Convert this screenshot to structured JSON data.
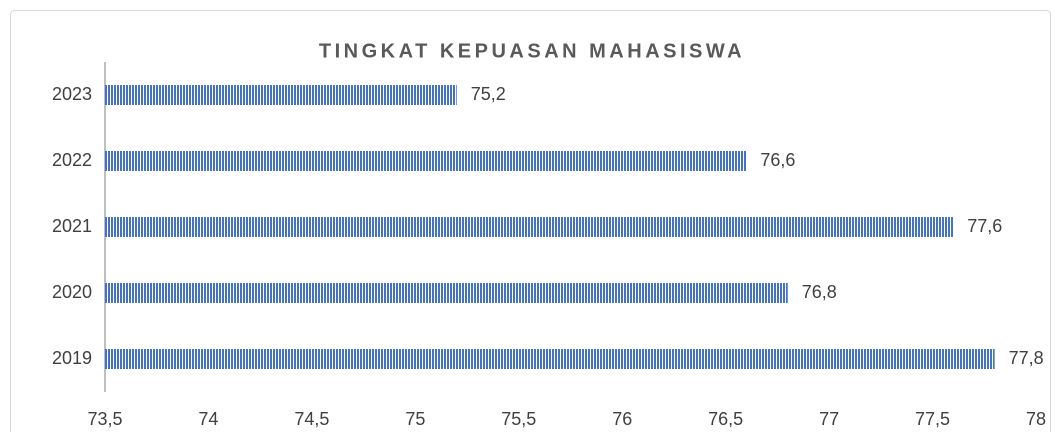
{
  "chart_data": {
    "type": "bar",
    "orientation": "horizontal",
    "title": "TINGKAT KEPUASAN MAHASISWA",
    "categories": [
      "2019",
      "2020",
      "2021",
      "2022",
      "2023"
    ],
    "values": [
      77.8,
      76.8,
      77.6,
      76.6,
      75.2
    ],
    "value_labels": [
      "77,8",
      "76,8",
      "77,6",
      "76,6",
      "75,2"
    ],
    "color": "#4472c4",
    "xlim": [
      73.5,
      78
    ],
    "xticks": [
      {
        "value": 73.5,
        "label": "73,5"
      },
      74,
      {
        "value": 74.5,
        "label": "74,5"
      },
      75,
      {
        "value": 75.5,
        "label": "75,5"
      },
      76,
      {
        "value": 76.5,
        "label": "76,5"
      },
      77,
      {
        "value": 77.5,
        "label": "77,5"
      },
      78
    ],
    "grid": false
  }
}
